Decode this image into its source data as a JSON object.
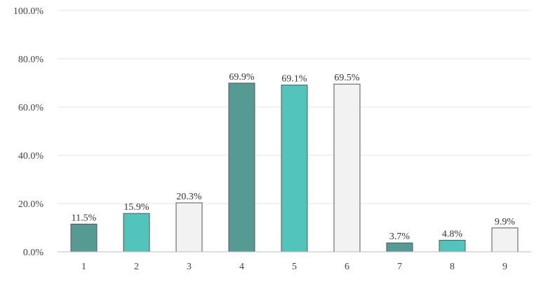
{
  "chart_data": {
    "type": "bar",
    "categories": [
      "1",
      "2",
      "3",
      "4",
      "5",
      "6",
      "7",
      "8",
      "9"
    ],
    "values": [
      11.5,
      15.9,
      20.3,
      69.9,
      69.1,
      69.5,
      3.7,
      4.8,
      9.9
    ],
    "data_labels": [
      "11.5%",
      "15.9%",
      "20.3%",
      "69.9%",
      "69.1%",
      "69.5%",
      "3.7%",
      "4.8%",
      "9.9%"
    ],
    "colors": [
      "#559b94",
      "#52c4bb",
      "#f2f2f2",
      "#559b94",
      "#52c4bb",
      "#f2f2f2",
      "#559b94",
      "#52c4bb",
      "#f2f2f2"
    ],
    "bar_stroke": "#555555",
    "yticks": [
      0,
      20,
      40,
      60,
      80,
      100
    ],
    "ytick_labels": [
      "0.0%",
      "20.0%",
      "40.0%",
      "60.0%",
      "80.0%",
      "100.0%"
    ],
    "ylim": [
      0,
      100
    ],
    "grid": true,
    "legend": "none"
  }
}
